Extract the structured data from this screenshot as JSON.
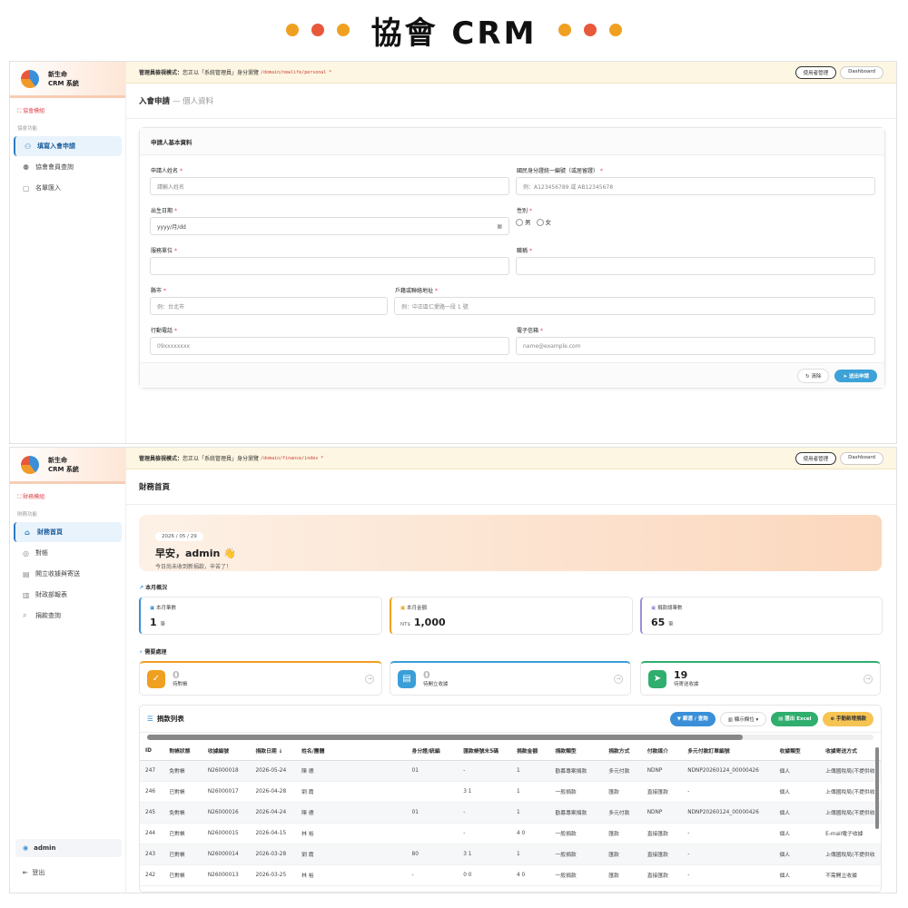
{
  "header": {
    "title": "協會 CRM"
  },
  "app": {
    "name_line1": "新生命",
    "name_line2": "CRM 系統"
  },
  "banner": {
    "label": "管理員檢視模式：",
    "text": "您正以「系統管理員」身分瀏覽",
    "path1": "/domain/newlife/personal *",
    "path2": "/domain/finance/index *",
    "btn_users": "使用者管理",
    "btn_dashboard": "Dashboard"
  },
  "screen1": {
    "module_tag": "協會模組",
    "group_label": "協會功能",
    "nav": [
      {
        "icon": "user-add-icon",
        "label": "填寫入會申請",
        "active": true
      },
      {
        "icon": "users-icon",
        "label": "協會會員查詢",
        "active": false
      },
      {
        "icon": "file-icon",
        "label": "名單匯入",
        "active": false
      }
    ],
    "page_title": "入會申請",
    "page_sub": "— 個人資料",
    "card_title": "申請人基本資料",
    "fields": {
      "name_label": "申請人姓名",
      "name_ph": "請輸入姓名",
      "id_label": "國民身分證統一編號（或居留證）",
      "id_ph": "例：A123456789 或 AB12345678",
      "dob_label": "出生日期",
      "dob_ph": "yyyy/月/dd",
      "gender_label": "性別",
      "gender_m": "男",
      "gender_f": "女",
      "org_label": "服務單位",
      "title_label": "職稱",
      "city_label": "縣市",
      "city_ph": "例：台北市",
      "addr_label": "戶籍或聯絡地址",
      "addr_ph": "例：中正區仁愛路一段 1 號",
      "mobile_label": "行動電話",
      "mobile_ph": "09xxxxxxxx",
      "email_label": "電子信箱",
      "email_ph": "name@example.com"
    },
    "btn_clear": "清除",
    "btn_submit": "送出申請"
  },
  "screen2": {
    "module_tag": "財務模組",
    "group_label": "財務功能",
    "nav": [
      {
        "icon": "home-icon",
        "label": "財務首頁",
        "active": true
      },
      {
        "icon": "check-circle-icon",
        "label": "對帳",
        "active": false
      },
      {
        "icon": "receipt-icon",
        "label": "開立收據與寄送",
        "active": false
      },
      {
        "icon": "report-icon",
        "label": "財政部報表",
        "active": false
      },
      {
        "icon": "search-icon",
        "label": "捐款查詢",
        "active": false
      }
    ],
    "user": "admin",
    "logout": "登出",
    "page_title": "財務首頁",
    "hero": {
      "date": "2026 / 05 / 29",
      "greeting": "早安，admin 👋",
      "sub": "今日尚未收到新捐款，辛苦了！"
    },
    "overview_label": "本月概況",
    "stats": [
      {
        "label": "本月筆數",
        "value": "1",
        "unit": "筆",
        "color": "#3a8fd8"
      },
      {
        "label": "本月金額",
        "value": "1,000",
        "unit": "NT$",
        "color": "#f0a020"
      },
      {
        "label": "捐款總筆數",
        "value": "65",
        "unit": "筆",
        "color": "#9a8fd8"
      }
    ],
    "todo_label": "需要處理",
    "todos": [
      {
        "value": "0",
        "label": "待對帳",
        "color": "#f0a020"
      },
      {
        "value": "0",
        "label": "待開立收據",
        "color": "#3a9fd8"
      },
      {
        "value": "19",
        "label": "待寄送收據",
        "color": "#2fae6e"
      }
    ],
    "table": {
      "title": "捐款列表",
      "btn_filter": "篩選 / 查詢",
      "btn_columns": "顯示欄位",
      "btn_export": "匯出 Excel",
      "btn_add": "手動新增捐款",
      "columns": [
        "ID",
        "對帳狀態",
        "收據編號",
        "捐款日期 ↓",
        "姓名/團體",
        "",
        "身分證/統編",
        "匯款帳號末5碼",
        "捐款金額",
        "捐款類型",
        "捐款方式",
        "付款媒介",
        "多元付款訂單編號",
        "收據類型",
        "收據寄送方式"
      ],
      "rows": [
        [
          "247",
          "免對帳",
          "N26000018",
          "2026-05-24",
          "陳 德",
          "",
          "01",
          "-",
          "1",
          "勸募專案捐款",
          "多元付款",
          "NDNP",
          "NDNP20260124_00000426",
          "個人",
          "上傳國稅局(不提供收"
        ],
        [
          "246",
          "已對帳",
          "N26000017",
          "2026-04-28",
          "劉 霞",
          "",
          "",
          "3 1",
          "1",
          "一般捐款",
          "匯款",
          "直接匯款",
          "-",
          "個人",
          "上傳國稅局(不提供收"
        ],
        [
          "245",
          "免對帳",
          "N26000016",
          "2026-04-24",
          "陳 德",
          "",
          "01",
          "-",
          "1",
          "勸募專案捐款",
          "多元付款",
          "NDNP",
          "NDNP20260124_00000426",
          "個人",
          "上傳國稅局(不提供收"
        ],
        [
          "244",
          "已對帳",
          "N26000015",
          "2026-04-15",
          "林 裕",
          "",
          "",
          "-",
          "4 0",
          "一般捐款",
          "匯款",
          "直接匯款",
          "-",
          "個人",
          "E-mail電子收據"
        ],
        [
          "243",
          "已對帳",
          "N26000014",
          "2026-03-28",
          "劉 霞",
          "",
          "80",
          "3 1",
          "1",
          "一般捐款",
          "匯款",
          "直接匯款",
          "-",
          "個人",
          "上傳國稅局(不提供收"
        ],
        [
          "242",
          "已對帳",
          "N26000013",
          "2026-03-25",
          "林 裕",
          "",
          "-",
          "0 0",
          "4 0",
          "一般捐款",
          "匯款",
          "直接匯款",
          "-",
          "個人",
          "不需開立收據"
        ]
      ]
    }
  }
}
